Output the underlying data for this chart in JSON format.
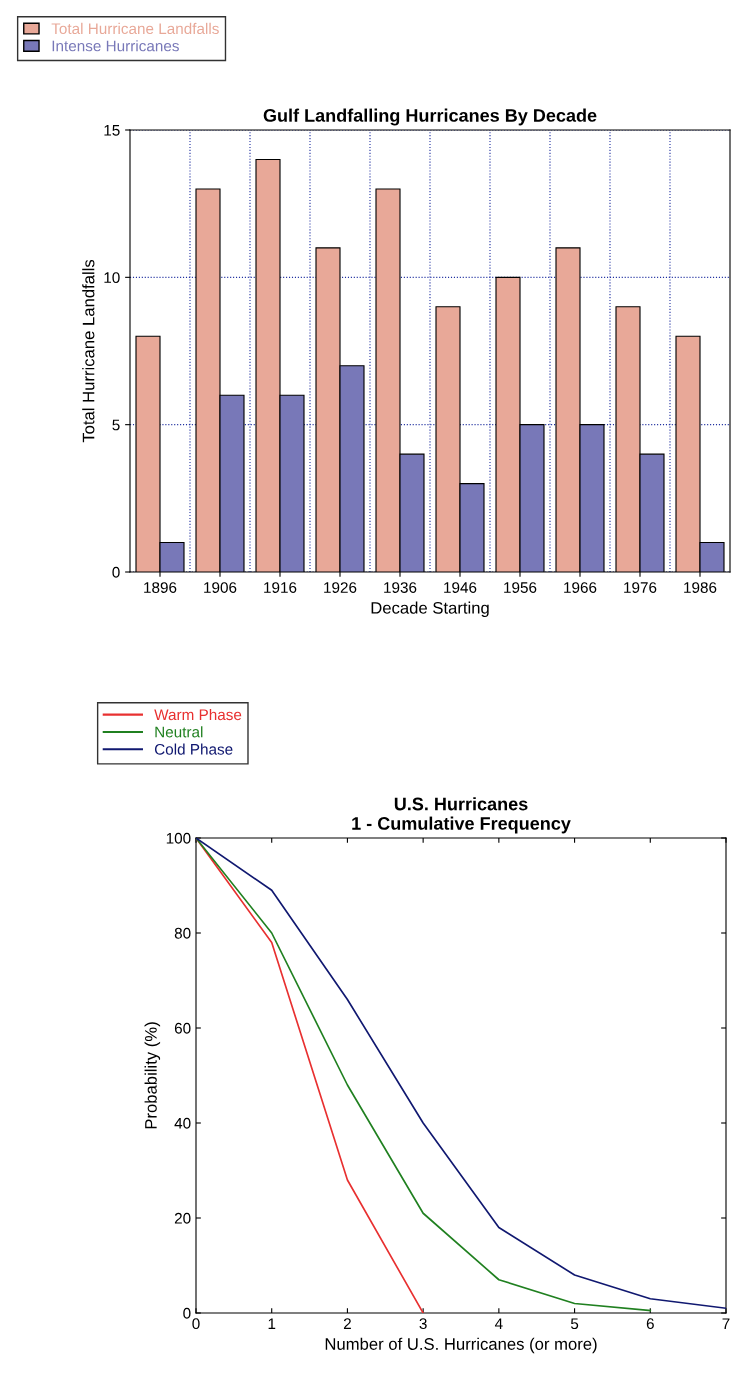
{
  "chart_data": [
    {
      "type": "bar",
      "title": "Gulf Landfalling Hurricanes By Decade",
      "xlabel": "Decade Starting",
      "ylabel": "Total Hurricane Landfalls",
      "categories": [
        "1896",
        "1906",
        "1916",
        "1926",
        "1936",
        "1946",
        "1956",
        "1966",
        "1976",
        "1986"
      ],
      "series": [
        {
          "name": "Total Hurricane Landfalls",
          "color": "#e8a898",
          "values": [
            8,
            13,
            14,
            11,
            13,
            9,
            10,
            11,
            9,
            8
          ]
        },
        {
          "name": "Intense Hurricanes",
          "color": "#7878b8",
          "values": [
            1,
            6,
            6,
            7,
            4,
            3,
            5,
            5,
            4,
            1
          ]
        }
      ],
      "ylim": [
        0,
        15
      ],
      "yticks": [
        0,
        5,
        10,
        15
      ],
      "grid": true,
      "legend": "top left"
    },
    {
      "type": "line",
      "title": "U.S. Hurricanes\n1 - Cumulative Frequency",
      "xlabel": "Number of U.S. Hurricanes (or more)",
      "ylabel": "Probability (%)",
      "series": [
        {
          "name": "Warm Phase",
          "color": "#e83030",
          "x": [
            0,
            1,
            2,
            3
          ],
          "values": [
            100,
            78,
            28,
            0
          ]
        },
        {
          "name": "Neutral",
          "color": "#208020",
          "x": [
            0,
            1,
            2,
            3,
            4,
            5,
            6
          ],
          "values": [
            100,
            80,
            48,
            21,
            7,
            2,
            0.5
          ]
        },
        {
          "name": "Cold Phase",
          "color": "#101870",
          "x": [
            0,
            1,
            2,
            3,
            4,
            5,
            6,
            7
          ],
          "values": [
            100,
            89,
            66,
            40,
            18,
            8,
            3,
            1
          ]
        }
      ],
      "xlim": [
        0,
        7
      ],
      "xticks": [
        0,
        1,
        2,
        3,
        4,
        5,
        6,
        7
      ],
      "ylim": [
        0,
        100
      ],
      "yticks": [
        0,
        20,
        40,
        60,
        80,
        100
      ],
      "grid": false,
      "legend": "top left",
      "line_style": "solid",
      "marker": "none"
    }
  ]
}
